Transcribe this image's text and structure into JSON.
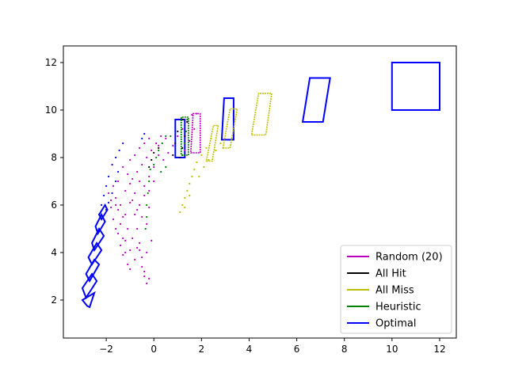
{
  "chart_data": {
    "type": "scatter",
    "title": "",
    "xlabel": "",
    "ylabel": "",
    "xlim": [
      -3.8,
      12.7
    ],
    "ylim": [
      0.4,
      12.7
    ],
    "x_ticks": [
      -2,
      0,
      2,
      4,
      6,
      8,
      10,
      12
    ],
    "y_ticks": [
      2,
      4,
      6,
      8,
      10,
      12
    ],
    "x_tick_labels": [
      "−2",
      "0",
      "2",
      "4",
      "6",
      "8",
      "10",
      "12"
    ],
    "y_tick_labels": [
      "2",
      "4",
      "6",
      "8",
      "10",
      "12"
    ],
    "grid": false,
    "legend_position": "lower-right",
    "series": [
      {
        "name": "Random (20)",
        "color": "#bf00bf",
        "style": "dots",
        "points": [
          [
            -1.6,
            6.3
          ],
          [
            -1.5,
            5.8
          ],
          [
            -1.4,
            5.2
          ],
          [
            -1.3,
            4.6
          ],
          [
            -1.2,
            4.0
          ],
          [
            -1.1,
            3.5
          ],
          [
            -1.5,
            4.8
          ],
          [
            -1.4,
            4.3
          ],
          [
            -1.3,
            3.9
          ],
          [
            -1.7,
            5.4
          ],
          [
            -1.6,
            5.0
          ],
          [
            -1.8,
            5.9
          ],
          [
            -1.2,
            6.6
          ],
          [
            -1.0,
            6.9
          ],
          [
            -0.9,
            6.2
          ],
          [
            -0.8,
            5.6
          ],
          [
            -0.7,
            5.0
          ],
          [
            -0.6,
            4.4
          ],
          [
            -0.5,
            3.8
          ],
          [
            -0.4,
            3.2
          ],
          [
            -0.3,
            2.7
          ],
          [
            -0.2,
            2.9
          ],
          [
            -0.5,
            3.4
          ],
          [
            -0.6,
            4.1
          ],
          [
            -0.9,
            7.1
          ],
          [
            -0.7,
            7.4
          ],
          [
            -0.5,
            7.7
          ],
          [
            -0.3,
            8.0
          ],
          [
            -0.1,
            8.3
          ],
          [
            0.1,
            8.6
          ],
          [
            0.3,
            8.9
          ],
          [
            0.5,
            8.8
          ],
          [
            0.2,
            8.1
          ],
          [
            0.0,
            7.6
          ],
          [
            -0.2,
            7.2
          ],
          [
            -0.4,
            6.8
          ],
          [
            -1.1,
            7.3
          ],
          [
            -1.3,
            7.6
          ],
          [
            -1.0,
            7.9
          ],
          [
            -0.8,
            8.1
          ],
          [
            -0.6,
            8.4
          ],
          [
            -0.4,
            8.6
          ],
          [
            -0.2,
            8.8
          ],
          [
            0.4,
            7.9
          ],
          [
            0.6,
            8.2
          ],
          [
            0.8,
            8.5
          ],
          [
            1.0,
            8.9
          ],
          [
            1.2,
            9.2
          ],
          [
            1.4,
            9.5
          ],
          [
            1.6,
            9.8
          ],
          [
            1.8,
            9.85
          ],
          [
            1.7,
            9.2
          ],
          [
            1.5,
            8.7
          ],
          [
            1.3,
            8.3
          ],
          [
            -1.9,
            6.5
          ],
          [
            -1.7,
            6.8
          ],
          [
            -1.5,
            7.0
          ],
          [
            -1.3,
            5.5
          ],
          [
            -1.1,
            5.0
          ],
          [
            -0.9,
            4.6
          ],
          [
            -0.7,
            4.2
          ],
          [
            -0.8,
            3.7
          ],
          [
            -1.0,
            4.1
          ],
          [
            -1.2,
            4.5
          ],
          [
            -0.3,
            5.2
          ],
          [
            -0.2,
            5.9
          ],
          [
            -0.4,
            6.4
          ],
          [
            -0.6,
            6.0
          ],
          [
            -0.8,
            6.5
          ],
          [
            -1.0,
            6.1
          ],
          [
            -1.4,
            6.0
          ],
          [
            -1.2,
            5.6
          ],
          [
            -0.1,
            4.5
          ],
          [
            -0.3,
            4.0
          ],
          [
            -0.5,
            5.5
          ],
          [
            -0.7,
            5.8
          ],
          [
            0.2,
            8.5
          ],
          [
            -0.6,
            7.0
          ],
          [
            -0.2,
            6.6
          ],
          [
            0.0,
            7.0
          ],
          [
            -1.6,
            6.0
          ],
          [
            -1.8,
            6.2
          ],
          [
            -1.0,
            3.3
          ],
          [
            -0.4,
            3.0
          ]
        ]
      },
      {
        "name": "All Hit",
        "color": "#000000",
        "style": "dots",
        "points": [
          [
            0.8,
            8.1
          ],
          [
            0.9,
            8.6
          ],
          [
            1.0,
            9.1
          ],
          [
            1.2,
            9.6
          ],
          [
            1.4,
            9.5
          ],
          [
            1.3,
            8.9
          ],
          [
            1.2,
            8.4
          ],
          [
            1.1,
            8.0
          ],
          [
            -0.2,
            7.6
          ],
          [
            -0.1,
            7.9
          ],
          [
            0.0,
            8.2
          ],
          [
            0.2,
            8.4
          ]
        ]
      },
      {
        "name": "All Miss",
        "color": "#bfbf00",
        "style": "dots",
        "points": [
          [
            1.1,
            5.7
          ],
          [
            1.2,
            6.0
          ],
          [
            1.3,
            6.3
          ],
          [
            1.4,
            6.6
          ],
          [
            1.5,
            6.9
          ],
          [
            1.6,
            7.2
          ],
          [
            1.7,
            7.5
          ],
          [
            1.8,
            7.8
          ],
          [
            2.0,
            8.1
          ],
          [
            2.2,
            8.4
          ],
          [
            2.4,
            8.8
          ],
          [
            1.9,
            7.2
          ],
          [
            2.1,
            7.6
          ],
          [
            2.3,
            7.9
          ],
          [
            2.6,
            8.3
          ],
          [
            2.8,
            8.6
          ],
          [
            1.3,
            5.9
          ],
          [
            1.5,
            6.4
          ]
        ]
      },
      {
        "name": "Heuristic",
        "color": "#008000",
        "style": "dots",
        "points": [
          [
            -0.3,
            5.5
          ],
          [
            -0.3,
            6.0
          ],
          [
            -0.25,
            6.5
          ],
          [
            -0.2,
            7.0
          ],
          [
            -0.15,
            7.5
          ],
          [
            0.0,
            7.7
          ],
          [
            0.1,
            8.0
          ],
          [
            0.2,
            8.3
          ],
          [
            0.35,
            8.6
          ],
          [
            0.5,
            8.9
          ],
          [
            0.7,
            8.9
          ],
          [
            0.5,
            7.6
          ],
          [
            0.3,
            7.4
          ],
          [
            1.2,
            8.1
          ],
          [
            1.3,
            8.6
          ],
          [
            1.35,
            9.1
          ],
          [
            1.4,
            9.6
          ],
          [
            -0.35,
            5.0
          ]
        ]
      },
      {
        "name": "Optimal",
        "color": "#0000ff",
        "style": "dots",
        "points": [
          [
            -2.3,
            5.6
          ],
          [
            -2.2,
            6.0
          ],
          [
            -2.1,
            6.4
          ],
          [
            -2.0,
            6.8
          ],
          [
            -1.9,
            7.2
          ],
          [
            -1.75,
            7.7
          ],
          [
            -1.6,
            8.0
          ],
          [
            -1.45,
            8.3
          ],
          [
            -1.3,
            8.6
          ],
          [
            -0.5,
            8.8
          ],
          [
            -0.4,
            9.0
          ],
          [
            -1.9,
            6.1
          ],
          [
            -2.0,
            5.8
          ],
          [
            -1.75,
            6.5
          ],
          [
            -1.6,
            7.0
          ],
          [
            -1.5,
            7.4
          ]
        ]
      }
    ],
    "boxes": [
      {
        "series": "Optimal",
        "corners": [
          [
            -2.7,
            1.7
          ],
          [
            -2.5,
            2.3
          ],
          [
            -3.0,
            2.0
          ],
          [
            -2.8,
            1.75
          ]
        ]
      },
      {
        "series": "Optimal",
        "corners": [
          [
            -2.85,
            2.1
          ],
          [
            -2.4,
            2.8
          ],
          [
            -2.6,
            3.1
          ],
          [
            -3.0,
            2.5
          ]
        ]
      },
      {
        "series": "Optimal",
        "corners": [
          [
            -2.7,
            2.8
          ],
          [
            -2.3,
            3.5
          ],
          [
            -2.5,
            3.7
          ],
          [
            -2.85,
            3.1
          ]
        ]
      },
      {
        "series": "Optimal",
        "corners": [
          [
            -2.6,
            3.5
          ],
          [
            -2.2,
            4.1
          ],
          [
            -2.4,
            4.4
          ],
          [
            -2.75,
            3.8
          ]
        ]
      },
      {
        "series": "Optimal",
        "corners": [
          [
            -2.5,
            4.1
          ],
          [
            -2.1,
            4.7
          ],
          [
            -2.3,
            5.0
          ],
          [
            -2.6,
            4.4
          ]
        ]
      },
      {
        "series": "Optimal",
        "corners": [
          [
            -2.35,
            4.8
          ],
          [
            -2.05,
            5.3
          ],
          [
            -2.2,
            5.6
          ],
          [
            -2.45,
            5.1
          ]
        ]
      },
      {
        "series": "Optimal",
        "corners": [
          [
            -2.2,
            5.4
          ],
          [
            -1.95,
            5.8
          ],
          [
            -2.05,
            6.0
          ],
          [
            -2.3,
            5.6
          ]
        ]
      },
      {
        "series": "Optimal",
        "corners": [
          [
            0.9,
            8.0
          ],
          [
            1.3,
            8.0
          ],
          [
            1.3,
            9.6
          ],
          [
            0.9,
            9.6
          ]
        ]
      },
      {
        "series": "Optimal",
        "corners": [
          [
            2.85,
            8.75
          ],
          [
            3.35,
            8.75
          ],
          [
            3.35,
            10.5
          ],
          [
            2.95,
            10.5
          ]
        ]
      },
      {
        "series": "Optimal",
        "corners": [
          [
            6.25,
            9.5
          ],
          [
            7.1,
            9.5
          ],
          [
            7.4,
            11.35
          ],
          [
            6.55,
            11.35
          ]
        ]
      },
      {
        "series": "Optimal",
        "corners": [
          [
            10.0,
            10.0
          ],
          [
            12.0,
            10.0
          ],
          [
            12.0,
            12.0
          ],
          [
            10.0,
            12.0
          ]
        ]
      },
      {
        "series": "Heuristic",
        "corners": [
          [
            1.15,
            8.1
          ],
          [
            1.45,
            8.1
          ],
          [
            1.45,
            9.7
          ],
          [
            1.15,
            9.7
          ]
        ]
      },
      {
        "series": "Random (20)",
        "corners": [
          [
            1.55,
            8.2
          ],
          [
            1.95,
            8.2
          ],
          [
            1.95,
            9.85
          ],
          [
            1.65,
            9.85
          ]
        ]
      },
      {
        "series": "All Miss",
        "corners": [
          [
            2.2,
            7.85
          ],
          [
            2.45,
            7.85
          ],
          [
            2.7,
            9.35
          ],
          [
            2.5,
            9.35
          ]
        ]
      },
      {
        "series": "All Miss",
        "corners": [
          [
            2.9,
            8.4
          ],
          [
            3.2,
            8.4
          ],
          [
            3.5,
            10.05
          ],
          [
            3.2,
            10.05
          ]
        ]
      },
      {
        "series": "All Miss",
        "corners": [
          [
            4.1,
            8.95
          ],
          [
            4.7,
            8.95
          ],
          [
            4.95,
            10.7
          ],
          [
            4.4,
            10.7
          ]
        ]
      }
    ]
  }
}
